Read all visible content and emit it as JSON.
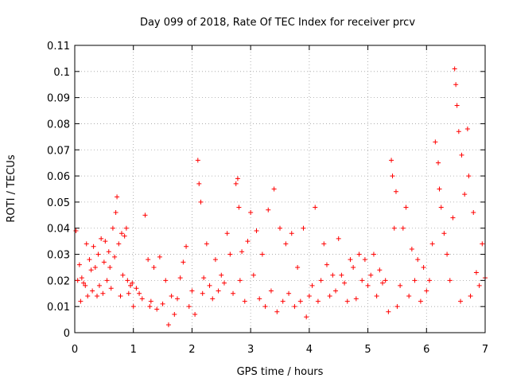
{
  "chart_data": {
    "type": "scatter",
    "title": "Day 099 of 2018, Rate Of TEC Index for receiver prcv",
    "xlabel": "GPS time / hours",
    "ylabel": "ROTI / TECUs",
    "xlim": [
      0,
      7
    ],
    "ylim": [
      0,
      0.11
    ],
    "xticks": [
      "0",
      "1",
      "2",
      "3",
      "4",
      "5",
      "6",
      "7"
    ],
    "yticks": [
      "0",
      "0.01",
      "0.02",
      "0.03",
      "0.04",
      "0.05",
      "0.06",
      "0.07",
      "0.08",
      "0.09",
      "0.1",
      "0.11"
    ],
    "grid": true,
    "marker": "+",
    "color": "#ff0000",
    "series": [
      {
        "name": "ROTI",
        "x": [
          0.02,
          0.05,
          0.08,
          0.1,
          0.12,
          0.15,
          0.18,
          0.2,
          0.22,
          0.25,
          0.28,
          0.3,
          0.32,
          0.35,
          0.38,
          0.4,
          0.42,
          0.45,
          0.48,
          0.5,
          0.52,
          0.55,
          0.58,
          0.6,
          0.62,
          0.65,
          0.68,
          0.7,
          0.72,
          0.75,
          0.78,
          0.8,
          0.82,
          0.85,
          0.88,
          0.9,
          0.92,
          0.95,
          0.98,
          1.0,
          1.05,
          1.1,
          1.15,
          1.2,
          1.25,
          1.28,
          1.3,
          1.35,
          1.4,
          1.45,
          1.5,
          1.55,
          1.6,
          1.65,
          1.7,
          1.75,
          1.8,
          1.85,
          1.9,
          1.95,
          2.0,
          2.05,
          2.1,
          2.12,
          2.15,
          2.18,
          2.2,
          2.25,
          2.3,
          2.35,
          2.4,
          2.45,
          2.5,
          2.55,
          2.6,
          2.65,
          2.7,
          2.75,
          2.78,
          2.8,
          2.82,
          2.85,
          2.9,
          2.95,
          3.0,
          3.05,
          3.1,
          3.15,
          3.2,
          3.25,
          3.3,
          3.35,
          3.4,
          3.45,
          3.5,
          3.55,
          3.6,
          3.65,
          3.7,
          3.75,
          3.8,
          3.85,
          3.9,
          3.95,
          4.0,
          4.05,
          4.1,
          4.15,
          4.2,
          4.25,
          4.3,
          4.35,
          4.4,
          4.45,
          4.5,
          4.55,
          4.6,
          4.65,
          4.7,
          4.75,
          4.8,
          4.85,
          4.9,
          4.95,
          5.0,
          5.05,
          5.1,
          5.15,
          5.2,
          5.25,
          5.3,
          5.35,
          5.4,
          5.42,
          5.45,
          5.48,
          5.5,
          5.55,
          5.6,
          5.65,
          5.7,
          5.75,
          5.8,
          5.85,
          5.9,
          5.95,
          6.0,
          6.05,
          6.1,
          6.15,
          6.2,
          6.22,
          6.25,
          6.3,
          6.35,
          6.4,
          6.45,
          6.48,
          6.5,
          6.52,
          6.55,
          6.58,
          6.6,
          6.65,
          6.7,
          6.72,
          6.75,
          6.8,
          6.85,
          6.9,
          6.95,
          7.0
        ],
        "y": [
          0.039,
          0.02,
          0.026,
          0.012,
          0.021,
          0.019,
          0.018,
          0.034,
          0.014,
          0.028,
          0.024,
          0.016,
          0.033,
          0.025,
          0.014,
          0.03,
          0.018,
          0.036,
          0.015,
          0.027,
          0.035,
          0.02,
          0.031,
          0.025,
          0.017,
          0.04,
          0.029,
          0.046,
          0.052,
          0.034,
          0.014,
          0.038,
          0.022,
          0.037,
          0.04,
          0.02,
          0.015,
          0.018,
          0.019,
          0.01,
          0.017,
          0.015,
          0.013,
          0.045,
          0.028,
          0.01,
          0.012,
          0.025,
          0.009,
          0.029,
          0.011,
          0.02,
          0.003,
          0.014,
          0.007,
          0.013,
          0.021,
          0.027,
          0.033,
          0.01,
          0.016,
          0.007,
          0.066,
          0.057,
          0.05,
          0.015,
          0.021,
          0.034,
          0.018,
          0.013,
          0.028,
          0.016,
          0.022,
          0.019,
          0.038,
          0.03,
          0.015,
          0.057,
          0.059,
          0.048,
          0.02,
          0.031,
          0.012,
          0.035,
          0.046,
          0.022,
          0.039,
          0.013,
          0.03,
          0.01,
          0.047,
          0.016,
          0.055,
          0.008,
          0.04,
          0.012,
          0.034,
          0.015,
          0.038,
          0.01,
          0.025,
          0.012,
          0.04,
          0.006,
          0.014,
          0.018,
          0.048,
          0.012,
          0.02,
          0.034,
          0.026,
          0.014,
          0.022,
          0.016,
          0.036,
          0.022,
          0.019,
          0.012,
          0.028,
          0.025,
          0.013,
          0.03,
          0.02,
          0.028,
          0.018,
          0.022,
          0.03,
          0.014,
          0.024,
          0.019,
          0.02,
          0.008,
          0.066,
          0.06,
          0.04,
          0.054,
          0.01,
          0.018,
          0.04,
          0.048,
          0.014,
          0.032,
          0.02,
          0.028,
          0.012,
          0.025,
          0.016,
          0.02,
          0.034,
          0.073,
          0.065,
          0.055,
          0.048,
          0.038,
          0.03,
          0.02,
          0.044,
          0.101,
          0.095,
          0.087,
          0.077,
          0.012,
          0.068,
          0.053,
          0.078,
          0.06,
          0.014,
          0.046,
          0.023,
          0.018,
          0.034,
          0.021
        ]
      }
    ]
  }
}
